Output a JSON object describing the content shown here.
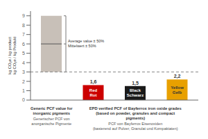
{
  "chart_data": {
    "type": "bar",
    "categories": [
      null,
      "Red\nRot",
      "Black\nSchwarz",
      "Yellow\nGelb"
    ],
    "values": [
      null,
      1.6,
      1.5,
      2.2
    ],
    "value_labels": [
      null,
      "1,6",
      "1,5",
      "2,2"
    ],
    "data_labels": true,
    "ranges": [
      [
        3.0,
        9.0
      ],
      null,
      null,
      null
    ],
    "averages": [
      6.0,
      null,
      null,
      null
    ],
    "colors": [
      "#c8c0b8",
      "#cc0000",
      "#1a1a1a",
      "#e8a000"
    ],
    "reference_line": 3.0,
    "ylim": [
      0,
      9.5
    ],
    "yticks": [
      0,
      1,
      2,
      3,
      4,
      5,
      6,
      7,
      8,
      9
    ],
    "ylabel": "kg CO₂e / kg product\nkg CO₂e / kg Produkt",
    "annotations": [
      "Average value ± 50%\nMittelwert ± 50%"
    ],
    "group_labels": [
      {
        "lines": [
          "Generic PCF value for",
          "inorganic pigments"
        ],
        "sublines": [
          "Generischer PCF von",
          "anorganische Pigmente"
        ]
      },
      {
        "lines": [
          "EPD verified PCF of Bayferrox iron oxide grades",
          "(based on powder, granules and compact",
          "pigments)"
        ],
        "sublines": [
          "PCF von Bayferrox Eisenoxiden",
          "(basierend auf Pulver, Granulat und Kompaktaten)"
        ]
      }
    ],
    "grid": false
  }
}
